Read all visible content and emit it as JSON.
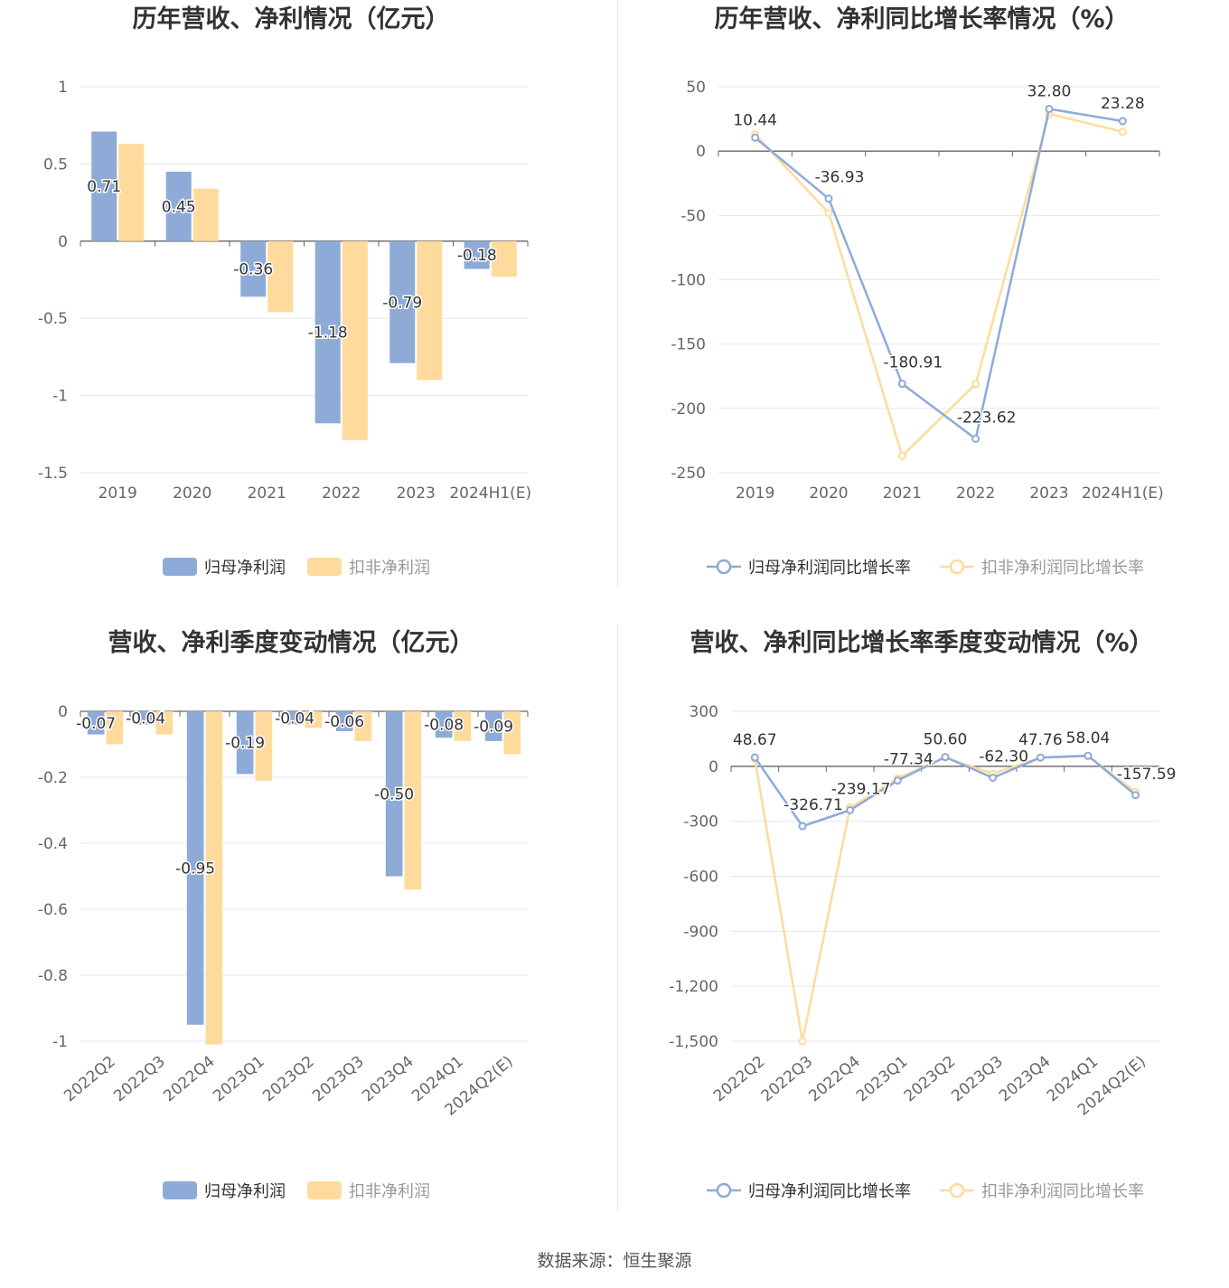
{
  "charts": [
    {
      "title": "历年营收、净利情况（亿元）",
      "type": "bar",
      "categories": [
        "2019",
        "2020",
        "2021",
        "2022",
        "2023",
        "2024H1(E)"
      ],
      "yticks": [
        1,
        0.5,
        0,
        -0.5,
        -1,
        -1.5
      ],
      "ylim": [
        -1.5,
        1
      ],
      "series": [
        {
          "name": "归母净利润",
          "values": [
            0.71,
            0.45,
            -0.36,
            -1.18,
            -0.79,
            -0.18
          ],
          "labels": [
            "0.71",
            "0.45",
            "-0.36",
            "-1.18",
            "-0.79",
            "-0.18"
          ]
        },
        {
          "name": "扣非净利润",
          "values": [
            0.63,
            0.34,
            -0.46,
            -1.29,
            -0.9,
            -0.23
          ]
        }
      ]
    },
    {
      "title": "历年营收、净利同比增长率情况（%）",
      "type": "line",
      "categories": [
        "2019",
        "2020",
        "2021",
        "2022",
        "2023",
        "2024H1(E)"
      ],
      "yticks": [
        "50",
        "0",
        "-50",
        "-100",
        "-150",
        "-200",
        "-250"
      ],
      "ylim": [
        -250,
        50
      ],
      "series": [
        {
          "name": "归母净利润同比增长率",
          "values": [
            10.44,
            -36.93,
            -180.91,
            -223.62,
            32.8,
            23.28
          ],
          "labels": [
            "10.44",
            "-36.93",
            "-180.91",
            "-223.62",
            "32.80",
            "23.28"
          ]
        },
        {
          "name": "扣非净利润同比增长率",
          "values": [
            13,
            -48,
            -237,
            -181,
            29,
            15
          ]
        }
      ]
    },
    {
      "title": "营收、净利季度变动情况（亿元）",
      "type": "bar",
      "categories": [
        "2022Q2",
        "2022Q3",
        "2022Q4",
        "2023Q1",
        "2023Q2",
        "2023Q3",
        "2023Q4",
        "2024Q1",
        "2024Q2(E)"
      ],
      "yticks": [
        0,
        -0.2,
        -0.4,
        -0.6,
        -0.8,
        -1
      ],
      "ylim": [
        -1,
        0
      ],
      "series": [
        {
          "name": "归母净利润",
          "values": [
            -0.07,
            -0.04,
            -0.95,
            -0.19,
            -0.04,
            -0.06,
            -0.5,
            -0.08,
            -0.09
          ],
          "labels": [
            "-0.07",
            "-0.04",
            "-0.95",
            "-0.19",
            "-0.04",
            "-0.06",
            "-0.50",
            "-0.08",
            "-0.09"
          ]
        },
        {
          "name": "扣非净利润",
          "values": [
            -0.1,
            -0.07,
            -1.01,
            -0.21,
            -0.05,
            -0.09,
            -0.54,
            -0.09,
            -0.13
          ]
        }
      ]
    },
    {
      "title": "营收、净利同比增长率季度变动情况（%）",
      "type": "line",
      "categories": [
        "2022Q2",
        "2022Q3",
        "2022Q4",
        "2023Q1",
        "2023Q2",
        "2023Q3",
        "2023Q4",
        "2024Q1",
        "2024Q2(E)"
      ],
      "yticks": [
        "300",
        "0",
        "-300",
        "-600",
        "-900",
        "-1,200",
        "-1,500"
      ],
      "ylim": [
        -1500,
        300
      ],
      "series": [
        {
          "name": "归母净利润同比增长率",
          "values": [
            48.67,
            -326.71,
            -239.17,
            -77.34,
            50.6,
            -62.3,
            47.76,
            58.04,
            -157.59
          ],
          "labels": [
            "48.67",
            "-326.71",
            "-239.17",
            "-77.34",
            "50.60",
            "-62.30",
            "47.76",
            "58.04",
            "-157.59"
          ]
        },
        {
          "name": "扣非净利润同比增长率",
          "values": [
            40,
            -1500,
            -225,
            -65,
            48,
            -40,
            47,
            55,
            -140
          ]
        }
      ]
    }
  ],
  "colors": {
    "series1": "#8eabd8",
    "series2": "#fedb9d",
    "axis": "#666666",
    "grid": "#e6e6f0"
  },
  "source": "数据来源：恒生聚源"
}
